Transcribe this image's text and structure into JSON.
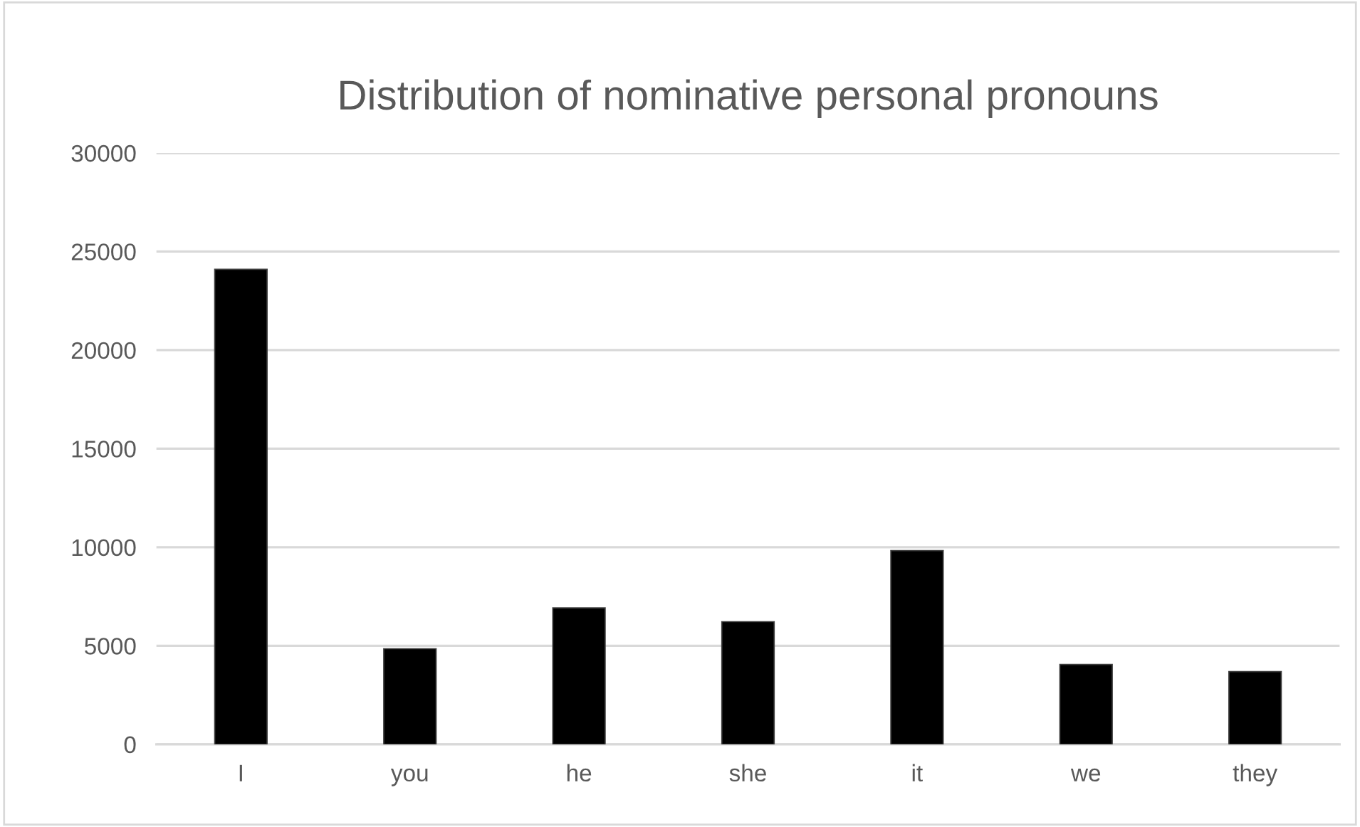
{
  "chart_data": {
    "type": "bar",
    "title": "Distribution of nominative personal pronouns",
    "categories": [
      "I",
      "you",
      "he",
      "she",
      "it",
      "we",
      "they"
    ],
    "values": [
      24100,
      4850,
      6920,
      6220,
      9830,
      4050,
      3690
    ],
    "color": "#000000",
    "ylim": [
      0,
      30000
    ],
    "yticks": [
      0,
      5000,
      10000,
      15000,
      20000,
      25000,
      30000
    ],
    "grid": "y",
    "legend": false
  }
}
